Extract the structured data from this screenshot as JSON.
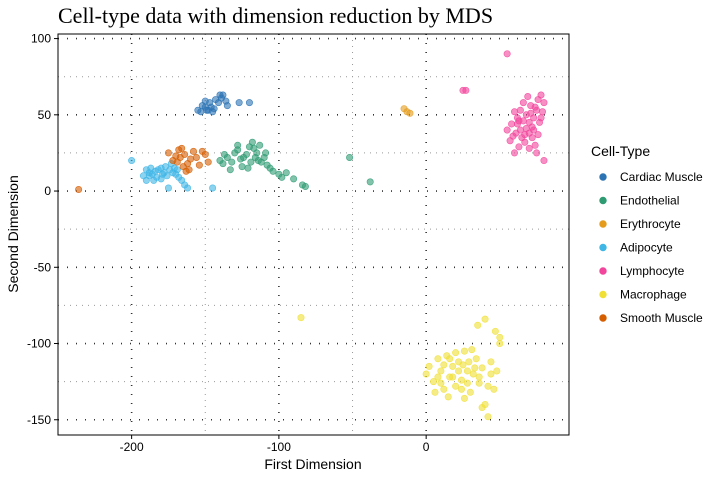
{
  "chart_data": {
    "type": "scatter",
    "title": "Cell-type data with dimension reduction by MDS",
    "xlabel": "First Dimension",
    "ylabel": "Second Dimension",
    "xlim": [
      -250,
      97
    ],
    "ylim": [
      -160,
      103
    ],
    "x_ticks": [
      -200,
      -100,
      0
    ],
    "y_ticks": [
      100,
      50,
      0,
      -50,
      -100,
      -150
    ],
    "grid": "dotted",
    "legend_title": "Cell-Type",
    "legend_position": "right",
    "series": [
      {
        "name": "Cardiac Muscle",
        "color": "#2c73b4",
        "points": [
          [
            -155,
            53
          ],
          [
            -152,
            56
          ],
          [
            -150,
            55
          ],
          [
            -148,
            53
          ],
          [
            -147,
            58
          ],
          [
            -145,
            52
          ],
          [
            -143,
            60
          ],
          [
            -140,
            63
          ],
          [
            -138,
            63
          ],
          [
            -136,
            59
          ],
          [
            -150,
            59
          ],
          [
            -146,
            55
          ],
          [
            -144,
            54
          ],
          [
            -135,
            56
          ],
          [
            -127,
            58
          ],
          [
            -120,
            58
          ],
          [
            -153,
            52
          ],
          [
            -141,
            58
          ],
          [
            -149,
            53
          ],
          [
            -139,
            61
          ]
        ]
      },
      {
        "name": "Endothelial",
        "color": "#2e9b73",
        "points": [
          [
            -140,
            20
          ],
          [
            -137,
            24
          ],
          [
            -135,
            22
          ],
          [
            -132,
            19
          ],
          [
            -130,
            25
          ],
          [
            -128,
            27
          ],
          [
            -126,
            21
          ],
          [
            -124,
            22
          ],
          [
            -122,
            24
          ],
          [
            -120,
            29
          ],
          [
            -118,
            32
          ],
          [
            -116,
            22
          ],
          [
            -114,
            20
          ],
          [
            -112,
            19
          ],
          [
            -110,
            22
          ],
          [
            -108,
            17
          ],
          [
            -106,
            15
          ],
          [
            -104,
            13
          ],
          [
            -100,
            11
          ],
          [
            -98,
            9
          ],
          [
            -95,
            12
          ],
          [
            -90,
            8
          ],
          [
            -82,
            3
          ],
          [
            -52,
            22
          ],
          [
            -38,
            6
          ],
          [
            -128,
            30
          ],
          [
            -125,
            16
          ],
          [
            -119,
            19
          ],
          [
            -115,
            25
          ],
          [
            -121,
            15
          ],
          [
            -133,
            14
          ],
          [
            -113,
            30
          ],
          [
            -117,
            28
          ],
          [
            -109,
            25
          ],
          [
            -84,
            4
          ],
          [
            -138,
            18
          ]
        ]
      },
      {
        "name": "Erythrocyte",
        "color": "#e59c1c",
        "points": [
          [
            -15,
            54
          ],
          [
            -13,
            52
          ],
          [
            -11,
            51
          ]
        ]
      },
      {
        "name": "Adipocyte",
        "color": "#3fb6e6",
        "points": [
          [
            -200,
            20
          ],
          [
            -192,
            10
          ],
          [
            -190,
            14
          ],
          [
            -188,
            12
          ],
          [
            -186,
            11
          ],
          [
            -184,
            13
          ],
          [
            -182,
            14
          ],
          [
            -180,
            15
          ],
          [
            -178,
            12
          ],
          [
            -176,
            10
          ],
          [
            -174,
            14
          ],
          [
            -172,
            12
          ],
          [
            -170,
            11
          ],
          [
            -168,
            9
          ],
          [
            -166,
            7
          ],
          [
            -164,
            4
          ],
          [
            -162,
            2
          ],
          [
            -175,
            2
          ],
          [
            -180,
            8
          ],
          [
            -185,
            7
          ],
          [
            -190,
            7
          ],
          [
            -187,
            15
          ],
          [
            -183,
            9
          ],
          [
            -177,
            16
          ],
          [
            -173,
            18
          ],
          [
            -171,
            15
          ],
          [
            -169,
            14
          ],
          [
            -145,
            2
          ],
          [
            -188,
            10
          ],
          [
            -179,
            11
          ]
        ]
      },
      {
        "name": "Lymphocyte",
        "color": "#f2459c",
        "points": [
          [
            55,
            90
          ],
          [
            25,
            66
          ],
          [
            27,
            66
          ],
          [
            60,
            52
          ],
          [
            62,
            44
          ],
          [
            64,
            40
          ],
          [
            66,
            46
          ],
          [
            68,
            50
          ],
          [
            70,
            38
          ],
          [
            72,
            42
          ],
          [
            74,
            55
          ],
          [
            76,
            60
          ],
          [
            78,
            63
          ],
          [
            80,
            58
          ],
          [
            65,
            35
          ],
          [
            67,
            32
          ],
          [
            63,
            29
          ],
          [
            70,
            28
          ],
          [
            75,
            25
          ],
          [
            80,
            20
          ],
          [
            60,
            25
          ],
          [
            55,
            40
          ],
          [
            58,
            44
          ],
          [
            61,
            38
          ],
          [
            73,
            48
          ],
          [
            77,
            45
          ],
          [
            79,
            52
          ],
          [
            71,
            56
          ],
          [
            69,
            62
          ],
          [
            66,
            58
          ],
          [
            72,
            35
          ],
          [
            74,
            30
          ],
          [
            76,
            37
          ],
          [
            68,
            41
          ],
          [
            62,
            48
          ],
          [
            57,
            33
          ],
          [
            64,
            53
          ],
          [
            78,
            48
          ],
          [
            70,
            45
          ],
          [
            67,
            37
          ],
          [
            75,
            53
          ],
          [
            73,
            40
          ],
          [
            59,
            36
          ],
          [
            63,
            46
          ],
          [
            71,
            51
          ]
        ]
      },
      {
        "name": "Macrophage",
        "color": "#f0e036",
        "points": [
          [
            -85,
            -83
          ],
          [
            0,
            -120
          ],
          [
            2,
            -115
          ],
          [
            5,
            -125
          ],
          [
            8,
            -110
          ],
          [
            10,
            -118
          ],
          [
            12,
            -130
          ],
          [
            14,
            -108
          ],
          [
            16,
            -122
          ],
          [
            18,
            -115
          ],
          [
            20,
            -128
          ],
          [
            22,
            -112
          ],
          [
            24,
            -124
          ],
          [
            26,
            -105
          ],
          [
            28,
            -118
          ],
          [
            30,
            -132
          ],
          [
            32,
            -120
          ],
          [
            34,
            -110
          ],
          [
            36,
            -126
          ],
          [
            38,
            -116
          ],
          [
            40,
            -140
          ],
          [
            42,
            -128
          ],
          [
            44,
            -120
          ],
          [
            46,
            -130
          ],
          [
            48,
            -118
          ],
          [
            50,
            -96
          ],
          [
            47,
            -92
          ],
          [
            40,
            -84
          ],
          [
            35,
            -88
          ],
          [
            50,
            -100
          ],
          [
            15,
            -135
          ],
          [
            42,
            -148
          ],
          [
            38,
            -142
          ],
          [
            6,
            -132
          ],
          [
            22,
            -118
          ],
          [
            28,
            -126
          ],
          [
            18,
            -122
          ],
          [
            25,
            -114
          ],
          [
            33,
            -116
          ],
          [
            12,
            -114
          ],
          [
            31,
            -104
          ],
          [
            20,
            -106
          ],
          [
            44,
            -112
          ],
          [
            10,
            -126
          ],
          [
            26,
            -136
          ],
          [
            36,
            -122
          ],
          [
            16,
            -110
          ],
          [
            24,
            -130
          ],
          [
            29,
            -112
          ],
          [
            8,
            -122
          ]
        ]
      },
      {
        "name": "Smooth Muscle",
        "color": "#d55e00",
        "points": [
          [
            -236,
            1
          ],
          [
            -175,
            25
          ],
          [
            -172,
            20
          ],
          [
            -170,
            23
          ],
          [
            -168,
            27
          ],
          [
            -166,
            28
          ],
          [
            -164,
            24
          ],
          [
            -162,
            18
          ],
          [
            -160,
            21
          ],
          [
            -158,
            26
          ],
          [
            -156,
            22
          ],
          [
            -154,
            17
          ],
          [
            -152,
            26
          ],
          [
            -150,
            24
          ],
          [
            -148,
            19
          ],
          [
            -163,
            13
          ],
          [
            -165,
            16
          ],
          [
            -161,
            14
          ],
          [
            -167,
            22
          ],
          [
            -169,
            19
          ]
        ]
      }
    ]
  }
}
